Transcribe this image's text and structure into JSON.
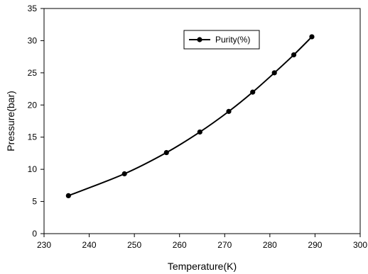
{
  "chart_data": {
    "type": "line",
    "xlabel": "Temperature(K)",
    "ylabel": "Pressure(bar)",
    "xlim": [
      230,
      300
    ],
    "ylim": [
      0,
      35
    ],
    "xticks": [
      230,
      240,
      250,
      260,
      270,
      280,
      290,
      300
    ],
    "yticks": [
      0,
      5,
      10,
      15,
      20,
      25,
      30,
      35
    ],
    "grid": false,
    "legend_position": "top-center",
    "series": [
      {
        "name": "Purity(%)",
        "color": "#000000",
        "marker": "circle",
        "x": [
          235.4,
          247.8,
          257.1,
          264.5,
          270.9,
          276.2,
          281.0,
          285.3,
          289.3
        ],
        "y": [
          5.9,
          9.3,
          12.6,
          15.8,
          19.0,
          22.0,
          25.0,
          27.8,
          30.6
        ]
      }
    ]
  }
}
